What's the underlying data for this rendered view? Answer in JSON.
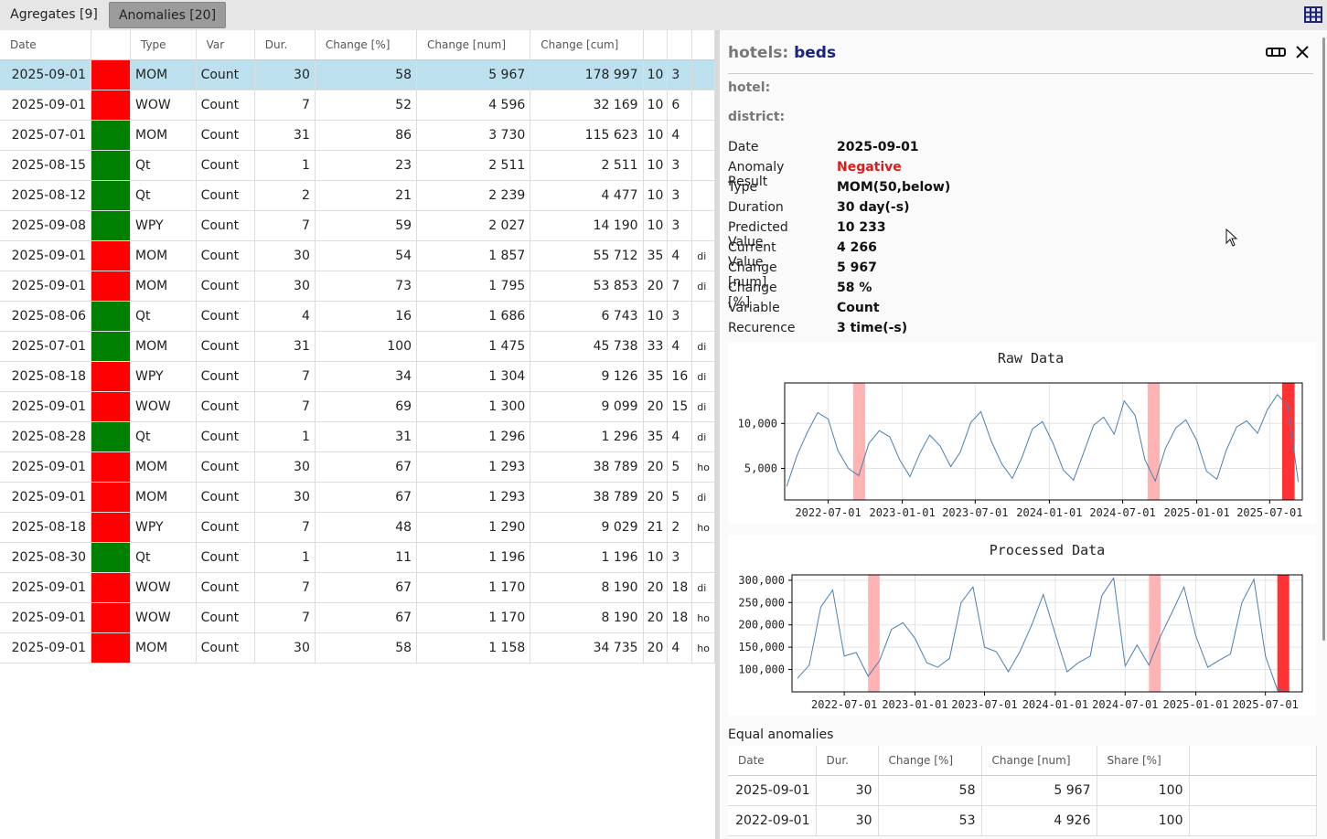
{
  "tabs": [
    {
      "label": "Agregates [9]"
    },
    {
      "label": "Anomalies [20]"
    }
  ],
  "table": {
    "headers": [
      "Date",
      "",
      "Type",
      "Var",
      "Dur.",
      "Change [%]",
      "Change [num]",
      "Change [cum]",
      "",
      "",
      ""
    ],
    "rows": [
      {
        "date": "2025-09-01",
        "color": "red",
        "type": "MOM",
        "var": "Count",
        "dur": "30",
        "pct": "58",
        "num": "5 967",
        "cum": "178 997",
        "c9": "10",
        "c10": "3",
        "c11": ""
      },
      {
        "date": "2025-09-01",
        "color": "red",
        "type": "WOW",
        "var": "Count",
        "dur": "7",
        "pct": "52",
        "num": "4 596",
        "cum": "32 169",
        "c9": "10",
        "c10": "6",
        "c11": ""
      },
      {
        "date": "2025-07-01",
        "color": "green",
        "type": "MOM",
        "var": "Count",
        "dur": "31",
        "pct": "86",
        "num": "3 730",
        "cum": "115 623",
        "c9": "10",
        "c10": "4",
        "c11": ""
      },
      {
        "date": "2025-08-15",
        "color": "green",
        "type": "Qt",
        "var": "Count",
        "dur": "1",
        "pct": "23",
        "num": "2 511",
        "cum": "2 511",
        "c9": "10",
        "c10": "3",
        "c11": ""
      },
      {
        "date": "2025-08-12",
        "color": "green",
        "type": "Qt",
        "var": "Count",
        "dur": "2",
        "pct": "21",
        "num": "2 239",
        "cum": "4 477",
        "c9": "10",
        "c10": "3",
        "c11": ""
      },
      {
        "date": "2025-09-08",
        "color": "green",
        "type": "WPY",
        "var": "Count",
        "dur": "7",
        "pct": "59",
        "num": "2 027",
        "cum": "14 190",
        "c9": "10",
        "c10": "3",
        "c11": ""
      },
      {
        "date": "2025-09-01",
        "color": "red",
        "type": "MOM",
        "var": "Count",
        "dur": "30",
        "pct": "54",
        "num": "1 857",
        "cum": "55 712",
        "c9": "35",
        "c10": "4",
        "c11": "di"
      },
      {
        "date": "2025-09-01",
        "color": "red",
        "type": "MOM",
        "var": "Count",
        "dur": "30",
        "pct": "73",
        "num": "1 795",
        "cum": "53 853",
        "c9": "20",
        "c10": "7",
        "c11": "di"
      },
      {
        "date": "2025-08-06",
        "color": "green",
        "type": "Qt",
        "var": "Count",
        "dur": "4",
        "pct": "16",
        "num": "1 686",
        "cum": "6 743",
        "c9": "10",
        "c10": "3",
        "c11": ""
      },
      {
        "date": "2025-07-01",
        "color": "green",
        "type": "MOM",
        "var": "Count",
        "dur": "31",
        "pct": "100",
        "num": "1 475",
        "cum": "45 738",
        "c9": "33",
        "c10": "4",
        "c11": "di"
      },
      {
        "date": "2025-08-18",
        "color": "red",
        "type": "WPY",
        "var": "Count",
        "dur": "7",
        "pct": "34",
        "num": "1 304",
        "cum": "9 126",
        "c9": "35",
        "c10": "16",
        "c11": "di"
      },
      {
        "date": "2025-09-01",
        "color": "red",
        "type": "WOW",
        "var": "Count",
        "dur": "7",
        "pct": "69",
        "num": "1 300",
        "cum": "9 099",
        "c9": "20",
        "c10": "15",
        "c11": "di"
      },
      {
        "date": "2025-08-28",
        "color": "green",
        "type": "Qt",
        "var": "Count",
        "dur": "1",
        "pct": "31",
        "num": "1 296",
        "cum": "1 296",
        "c9": "35",
        "c10": "4",
        "c11": "di"
      },
      {
        "date": "2025-09-01",
        "color": "red",
        "type": "MOM",
        "var": "Count",
        "dur": "30",
        "pct": "67",
        "num": "1 293",
        "cum": "38 789",
        "c9": "20",
        "c10": "5",
        "c11": "ho"
      },
      {
        "date": "2025-09-01",
        "color": "red",
        "type": "MOM",
        "var": "Count",
        "dur": "30",
        "pct": "67",
        "num": "1 293",
        "cum": "38 789",
        "c9": "20",
        "c10": "5",
        "c11": "di"
      },
      {
        "date": "2025-08-18",
        "color": "red",
        "type": "WPY",
        "var": "Count",
        "dur": "7",
        "pct": "48",
        "num": "1 290",
        "cum": "9 029",
        "c9": "21",
        "c10": "2",
        "c11": "ho"
      },
      {
        "date": "2025-08-30",
        "color": "green",
        "type": "Qt",
        "var": "Count",
        "dur": "1",
        "pct": "11",
        "num": "1 196",
        "cum": "1 196",
        "c9": "10",
        "c10": "3",
        "c11": ""
      },
      {
        "date": "2025-09-01",
        "color": "red",
        "type": "WOW",
        "var": "Count",
        "dur": "7",
        "pct": "67",
        "num": "1 170",
        "cum": "8 190",
        "c9": "20",
        "c10": "18",
        "c11": "di"
      },
      {
        "date": "2025-09-01",
        "color": "red",
        "type": "WOW",
        "var": "Count",
        "dur": "7",
        "pct": "67",
        "num": "1 170",
        "cum": "8 190",
        "c9": "20",
        "c10": "18",
        "c11": "ho"
      },
      {
        "date": "2025-09-01",
        "color": "red",
        "type": "MOM",
        "var": "Count",
        "dur": "30",
        "pct": "58",
        "num": "1 158",
        "cum": "34 735",
        "c9": "20",
        "c10": "4",
        "c11": "ho"
      }
    ]
  },
  "detail": {
    "title_prefix": "hotels:",
    "title_name": "beds",
    "hotel_label": "hotel:",
    "district_label": "district:",
    "fields": [
      {
        "key": "Date",
        "value": "2025-09-01"
      },
      {
        "key": "Anomaly Result",
        "value": "Negative"
      },
      {
        "key": "Type",
        "value": "MOM(50,below)"
      },
      {
        "key": "Duration",
        "value": "30 day(-s)"
      },
      {
        "key": "Predicted Value",
        "value": "10 233"
      },
      {
        "key": "Current Value",
        "value": "4 266"
      },
      {
        "key": "Change [num]",
        "value": "5 967"
      },
      {
        "key": "Change [%]",
        "value": "58 %"
      },
      {
        "key": "Variable",
        "value": "Count"
      },
      {
        "key": "Recurence",
        "value": "3 time(-s)"
      }
    ],
    "equal_label": "Equal anomalies",
    "equal_headers": [
      "Date",
      "Dur.",
      "Change [%]",
      "Change [num]",
      "Share [%]",
      ""
    ],
    "equal_rows": [
      {
        "date": "2025-09-01",
        "dur": "30",
        "pct": "58",
        "num": "5 967",
        "share": "100"
      },
      {
        "date": "2022-09-01",
        "dur": "30",
        "pct": "53",
        "num": "4 926",
        "share": "100"
      }
    ]
  },
  "colors": {
    "red": "#ff0000",
    "green": "#008000",
    "selected": "#bde0ef",
    "negative": "#e01b1b",
    "title": "#1a237e",
    "line": "#4a7fb0"
  },
  "chart_data": [
    {
      "type": "line",
      "title": "Raw Data",
      "xlabel": "",
      "ylabel": "",
      "x_ticks": [
        "2022-07-01",
        "2023-01-01",
        "2023-07-01",
        "2024-01-01",
        "2024-07-01",
        "2025-01-01",
        "2025-07-01"
      ],
      "y_ticks": [
        "5,000",
        "10,000"
      ],
      "ylim": [
        1500,
        14500
      ],
      "x_range": [
        "2022-03-15",
        "2025-09-20"
      ],
      "grid": true,
      "series": [
        {
          "x": [
            "2022-03-20",
            "2022-04-15",
            "2022-05-10",
            "2022-06-05",
            "2022-07-01",
            "2022-07-25",
            "2022-08-20",
            "2022-09-15",
            "2022-10-10",
            "2022-11-05",
            "2022-12-01",
            "2022-12-25",
            "2023-01-20",
            "2023-02-15",
            "2023-03-10",
            "2023-04-05",
            "2023-05-01",
            "2023-05-25",
            "2023-06-20",
            "2023-07-15",
            "2023-08-10",
            "2023-09-05",
            "2023-10-01",
            "2023-10-25",
            "2023-11-20",
            "2023-12-15",
            "2024-01-10",
            "2024-02-05",
            "2024-03-01",
            "2024-03-25",
            "2024-04-20",
            "2024-05-15",
            "2024-06-10",
            "2024-07-05",
            "2024-08-01",
            "2024-08-25",
            "2024-09-20",
            "2024-10-15",
            "2024-11-10",
            "2024-12-05",
            "2025-01-01",
            "2025-01-25",
            "2025-02-20",
            "2025-03-15",
            "2025-04-10",
            "2025-05-05",
            "2025-06-01",
            "2025-06-25",
            "2025-07-20",
            "2025-08-15",
            "2025-09-10"
          ],
          "values": [
            3000,
            6500,
            9000,
            11200,
            10500,
            7000,
            5000,
            4200,
            7800,
            9200,
            8500,
            6000,
            4100,
            6800,
            8700,
            7500,
            5200,
            6800,
            10100,
            11300,
            8000,
            5500,
            3900,
            6200,
            9400,
            10200,
            7800,
            4800,
            3700,
            6600,
            9800,
            10700,
            8800,
            12500,
            10900,
            6000,
            3600,
            7200,
            9500,
            10400,
            8100,
            4700,
            3800,
            7000,
            9600,
            10300,
            8900,
            11500,
            13200,
            12000,
            3500
          ],
          "name": "",
          "color": "#4a7fb0"
        }
      ],
      "anomaly_spans": [
        {
          "start": "2022-09-01",
          "end": "2022-10-01",
          "color": "#ffb3b3"
        },
        {
          "start": "2024-09-01",
          "end": "2024-10-01",
          "color": "#ffb3b3"
        },
        {
          "start": "2025-08-01",
          "end": "2025-09-01",
          "color": "#ff3333"
        }
      ]
    },
    {
      "type": "line",
      "title": "Processed Data",
      "xlabel": "",
      "ylabel": "",
      "x_ticks": [
        "2022-07-01",
        "2023-01-01",
        "2023-07-01",
        "2024-01-01",
        "2024-07-01",
        "2025-01-01",
        "2025-07-01"
      ],
      "y_ticks": [
        "100,000",
        "150,000",
        "200,000",
        "250,000",
        "300,000"
      ],
      "ylim": [
        50000,
        312000
      ],
      "x_range": [
        "2022-02-15",
        "2025-10-05"
      ],
      "grid": true,
      "series": [
        {
          "x": [
            "2022-03-01",
            "2022-04-01",
            "2022-05-01",
            "2022-06-01",
            "2022-07-01",
            "2022-08-01",
            "2022-09-01",
            "2022-10-01",
            "2022-11-01",
            "2022-12-01",
            "2023-01-01",
            "2023-02-01",
            "2023-03-01",
            "2023-04-01",
            "2023-05-01",
            "2023-06-01",
            "2023-07-01",
            "2023-08-01",
            "2023-09-01",
            "2023-10-01",
            "2023-11-01",
            "2023-12-01",
            "2024-01-01",
            "2024-02-01",
            "2024-03-01",
            "2024-04-01",
            "2024-05-01",
            "2024-06-01",
            "2024-07-01",
            "2024-08-01",
            "2024-09-01",
            "2024-10-01",
            "2024-11-01",
            "2024-12-01",
            "2025-01-01",
            "2025-02-01",
            "2025-03-01",
            "2025-04-01",
            "2025-05-01",
            "2025-06-01",
            "2025-07-01",
            "2025-08-01",
            "2025-09-01"
          ],
          "values": [
            80000,
            110000,
            240000,
            278000,
            130000,
            138000,
            85000,
            120000,
            190000,
            205000,
            170000,
            115000,
            105000,
            125000,
            250000,
            285000,
            150000,
            140000,
            95000,
            140000,
            200000,
            268000,
            180000,
            95000,
            115000,
            130000,
            265000,
            305000,
            108000,
            155000,
            110000,
            175000,
            230000,
            285000,
            175000,
            105000,
            120000,
            135000,
            250000,
            302000,
            130000,
            55000,
            52000
          ],
          "name": "",
          "color": "#4a7fb0"
        }
      ],
      "anomaly_spans": [
        {
          "start": "2022-09-01",
          "end": "2022-10-01",
          "color": "#ffb3b3"
        },
        {
          "start": "2024-09-01",
          "end": "2024-10-01",
          "color": "#ffb3b3"
        },
        {
          "start": "2025-08-01",
          "end": "2025-09-01",
          "color": "#ff3333"
        }
      ]
    }
  ]
}
